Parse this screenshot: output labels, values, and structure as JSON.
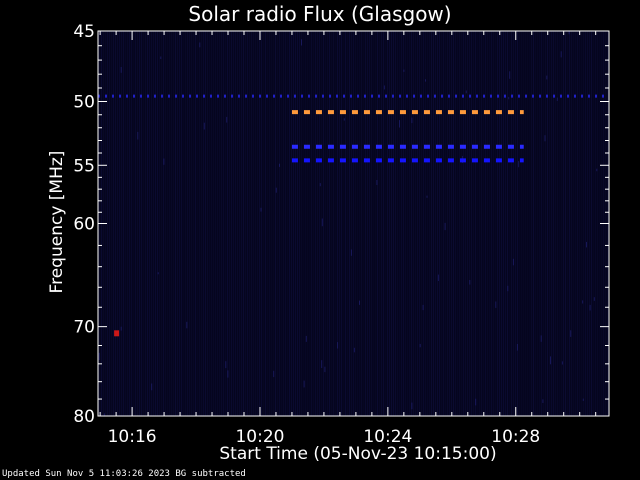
{
  "chart_data": {
    "type": "heatmap",
    "title": "Solar radio Flux (Glasgow)",
    "ylabel": "Frequency [MHz]",
    "xlabel": "Start Time (05-Nov-23 10:15:00)",
    "y_scale": "log",
    "ylim": [
      45,
      80
    ],
    "yticks": [
      {
        "value": 45,
        "label": "45"
      },
      {
        "value": 50,
        "label": "50"
      },
      {
        "value": 55,
        "label": "55"
      },
      {
        "value": 60,
        "label": "60"
      },
      {
        "value": 70,
        "label": "70"
      },
      {
        "value": 80,
        "label": "80"
      }
    ],
    "xlim": [
      "10:14:56",
      "10:30:55"
    ],
    "xticks": [
      {
        "value": "10:16:00",
        "label": "10:16"
      },
      {
        "value": "10:20:00",
        "label": "10:20"
      },
      {
        "value": "10:24:00",
        "label": "10:24"
      },
      {
        "value": "10:28:00",
        "label": "10:28"
      }
    ],
    "grid": false,
    "features": [
      {
        "kind": "dashed-line",
        "color": "#ff9a3c",
        "freq_mhz": 50.8,
        "start": "10:21:00",
        "end": "10:28:15"
      },
      {
        "kind": "dashed-line",
        "color": "#2a2aff",
        "freq_mhz": 53.5,
        "start": "10:21:00",
        "end": "10:28:15"
      },
      {
        "kind": "dashed-line",
        "color": "#1414ff",
        "freq_mhz": 54.6,
        "start": "10:21:00",
        "end": "10:28:15"
      },
      {
        "kind": "dotted-line",
        "color": "#2020c8",
        "freq_mhz": 49.6,
        "start": "10:14:56",
        "end": "10:30:55"
      },
      {
        "kind": "spot",
        "color": "#cc1818",
        "freq_mhz": 70.7,
        "time": "10:15:30"
      }
    ],
    "colors": {
      "background": "#000000",
      "plot_background": "#05051e",
      "axes": "#ffffff"
    }
  },
  "footer": {
    "text": "Updated Sun Nov  5 11:03:26 2023   BG subtracted"
  }
}
